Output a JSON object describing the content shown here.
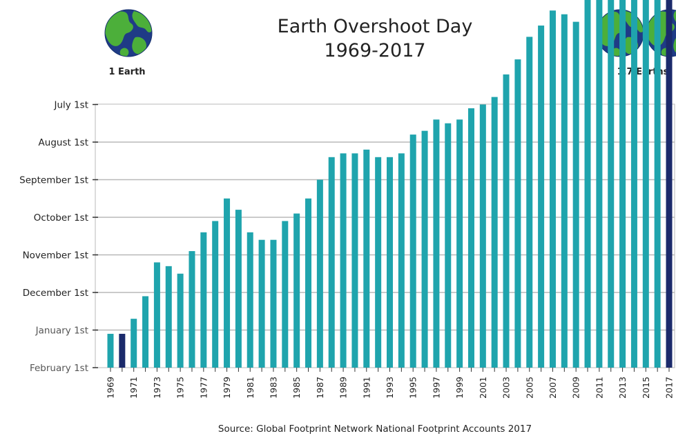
{
  "chart_data": {
    "type": "bar",
    "title": "Earth Overshoot Day",
    "subtitle": "1969-2017",
    "source": "Source: Global Footprint Network National Footprint Accounts 2017",
    "y_ticks": [
      "July 1st",
      "August 1st",
      "September 1st",
      "October 1st",
      "November 1st",
      "December 1st",
      "January 1st",
      "February 1st"
    ],
    "y_range_months_before_feb1": [
      0,
      7
    ],
    "grid": true,
    "x_tick_labels": [
      "1969",
      "1971",
      "1973",
      "1975",
      "1977",
      "1979",
      "1981",
      "1983",
      "1985",
      "1987",
      "1989",
      "1991",
      "1993",
      "1995",
      "1997",
      "1999",
      "2001",
      "2003",
      "2005",
      "2007",
      "2009",
      "2011",
      "2013",
      "2015",
      "2017"
    ],
    "categories": [
      "1969",
      "1970",
      "1971",
      "1972",
      "1973",
      "1974",
      "1975",
      "1976",
      "1977",
      "1978",
      "1979",
      "1980",
      "1981",
      "1982",
      "1983",
      "1984",
      "1985",
      "1986",
      "1987",
      "1988",
      "1989",
      "1990",
      "1991",
      "1992",
      "1993",
      "1994",
      "1995",
      "1996",
      "1997",
      "1998",
      "1999",
      "2000",
      "2001",
      "2002",
      "2003",
      "2004",
      "2005",
      "2006",
      "2007",
      "2008",
      "2009",
      "2010",
      "2011",
      "2012",
      "2013",
      "2014",
      "2015",
      "2016",
      "2017"
    ],
    "values": [
      0.9,
      0.9,
      1.3,
      1.9,
      2.8,
      2.7,
      2.5,
      3.1,
      3.6,
      3.9,
      4.5,
      4.2,
      3.6,
      3.4,
      3.4,
      3.9,
      4.1,
      4.5,
      5.0,
      5.6,
      5.7,
      5.7,
      5.8,
      5.6,
      5.6,
      5.7,
      6.2,
      6.3,
      6.6,
      6.5,
      6.6,
      6.9,
      7.0,
      7.2,
      7.8,
      8.2,
      8.8,
      9.1,
      9.5,
      9.4,
      9.2,
      9.9,
      10.3,
      10.2,
      10.3,
      10.4,
      10.4,
      10.4,
      10.6
    ],
    "highlight": [
      "1970",
      "2017"
    ],
    "colors": {
      "bar": "#1fa4ad",
      "highlight": "#1b2a6b",
      "grid": "#b8b8b8"
    },
    "legend": {
      "left": {
        "label": "1 Earth",
        "count": 1
      },
      "right": {
        "label": "1.7 Earths",
        "count": 2
      }
    }
  }
}
